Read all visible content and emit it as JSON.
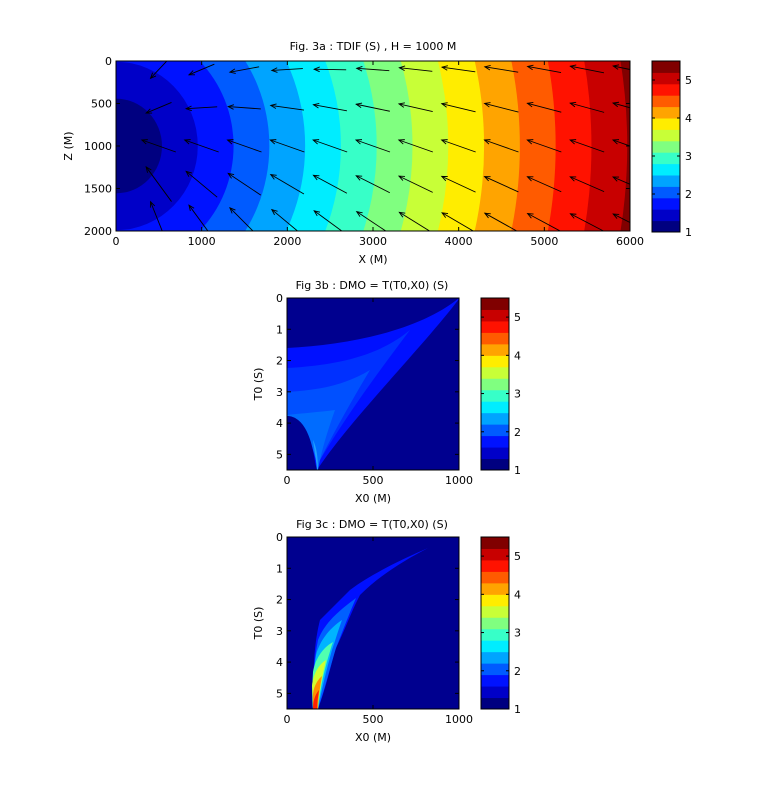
{
  "chart_data": [
    {
      "id": "fig3a",
      "type": "heatmap",
      "title": "Fig. 3a : TDIF (S) , H = 1000 M",
      "xlabel": "X (M)",
      "ylabel": "Z (M)",
      "xlim": [
        0,
        6000
      ],
      "ylim": [
        0,
        2000
      ],
      "y_reversed": true,
      "xticks": [
        "0",
        "1000",
        "2000",
        "3000",
        "4000",
        "5000",
        "6000"
      ],
      "yticks": [
        "0",
        "500",
        "1000",
        "1500",
        "2000"
      ],
      "colorbar": {
        "min": 1,
        "max": 5.5,
        "ticks": [
          "1",
          "2",
          "3",
          "4",
          "5"
        ],
        "levels": 15
      },
      "field": "contour levels of TDIF: minimum ~1 s near x=0, z=1000 m; increases to ~5.5 s at x=6000, z=0",
      "quiver": {
        "x": [
          500,
          1000,
          1500,
          2000,
          2500,
          3000,
          3500,
          4000,
          4500,
          5000,
          5500,
          6000
        ],
        "z": [
          100,
          550,
          1000,
          1450,
          1900
        ]
      }
    },
    {
      "id": "fig3b",
      "type": "heatmap",
      "title": "Fig 3b : DMO = T(T0,X0) (S)",
      "xlabel": "X0 (M)",
      "ylabel": "T0 (S)",
      "xlim": [
        0,
        1000
      ],
      "ylim": [
        0,
        5.5
      ],
      "y_reversed": true,
      "xticks": [
        "0",
        "500",
        "1000"
      ],
      "yticks": [
        "0",
        "1",
        "2",
        "3",
        "4",
        "5"
      ],
      "colorbar": {
        "min": 1,
        "max": 5.5,
        "ticks": [
          "1",
          "2",
          "3",
          "4",
          "5"
        ],
        "levels": 15
      }
    },
    {
      "id": "fig3c",
      "type": "heatmap",
      "title": "Fig 3c : DMO = T(T0,X0) (S)",
      "xlabel": "X0 (M)",
      "ylabel": "T0 (S)",
      "xlim": [
        0,
        1000
      ],
      "ylim": [
        0,
        5.5
      ],
      "y_reversed": true,
      "xticks": [
        "0",
        "500",
        "1000"
      ],
      "yticks": [
        "0",
        "1",
        "2",
        "3",
        "4",
        "5"
      ],
      "colorbar": {
        "min": 1,
        "max": 5.5,
        "ticks": [
          "1",
          "2",
          "3",
          "4",
          "5"
        ],
        "levels": 15
      }
    }
  ]
}
